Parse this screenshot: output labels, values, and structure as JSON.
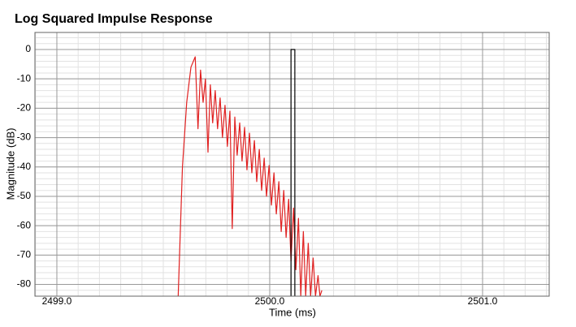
{
  "chart_data": {
    "type": "line",
    "title": "Log Squared Impulse Response",
    "x_label": "Time (ms)",
    "y_label": "Magnitude (dB)",
    "xlim": [
      2498.897,
      2501.313
    ],
    "ylim": [
      -84,
      5.8
    ],
    "xticks": [
      {
        "value": 2499,
        "label": "2499.0"
      },
      {
        "value": 2500,
        "label": "2500.0"
      },
      {
        "value": 2501,
        "label": "2501.0"
      }
    ],
    "yticks": [
      0,
      -10,
      -20,
      -30,
      -40,
      -50,
      -60,
      -70,
      -80
    ],
    "grid": true,
    "minor_grid": true,
    "series": [
      {
        "color": "#e02020",
        "x": [
          2499.57,
          2499.59,
          2499.61,
          2499.63,
          2499.65,
          2499.663,
          2499.675,
          2499.687,
          2499.698,
          2499.71,
          2499.721,
          2499.732,
          2499.744,
          2499.755,
          2499.767,
          2499.778,
          2499.79,
          2499.801,
          2499.813,
          2499.824,
          2499.836,
          2499.847,
          2499.859,
          2499.87,
          2499.882,
          2499.893,
          2499.905,
          2499.916,
          2499.928,
          2499.939,
          2499.951,
          2499.962,
          2499.974,
          2499.985,
          2499.997,
          2500.008,
          2500.02,
          2500.031,
          2500.043,
          2500.054,
          2500.066,
          2500.077,
          2500.089,
          2500.1,
          2500.112,
          2500.123,
          2500.135,
          2500.146,
          2500.158,
          2500.169,
          2500.181,
          2500.192,
          2500.204,
          2500.215,
          2500.227,
          2500.236,
          2500.245
        ],
        "values": [
          -84,
          -40,
          -18,
          -6,
          -2.5,
          -27,
          -7,
          -18,
          -10,
          -35,
          -12,
          -25,
          -14,
          -27,
          -16.5,
          -30,
          -19,
          -33,
          -21,
          -61,
          -23,
          -36,
          -25,
          -38,
          -26.5,
          -41,
          -28.5,
          -42,
          -31,
          -45,
          -34,
          -48,
          -37,
          -50,
          -39.5,
          -53,
          -42,
          -56,
          -45,
          -62,
          -48,
          -64,
          -51,
          -72,
          -54,
          -75,
          -57.5,
          -84,
          -62,
          -84,
          -66,
          -84,
          -71,
          -84,
          -77,
          -84,
          -82
        ]
      },
      {
        "color": "#000000",
        "x": [
          2500.1,
          2500.1,
          2500.118,
          2500.118
        ],
        "values": [
          -84,
          0,
          0,
          -84
        ]
      }
    ]
  }
}
